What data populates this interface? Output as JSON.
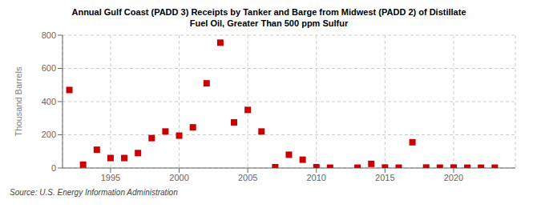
{
  "chart_data": {
    "type": "scatter",
    "title": "Annual Gulf Coast (PADD 3) Receipts by Tanker and Barge from Midwest (PADD 2) of Distillate\nFuel Oil, Greater Than 500 ppm Sulfur",
    "ylabel": "Thousand Barrels",
    "annotation": "Source: U.S. Energy Information Administration",
    "color": "#cc0000",
    "marker": "square",
    "grid": true,
    "xlim": [
      1991.5,
      2024.5
    ],
    "xticks": [
      1995,
      2000,
      2005,
      2010,
      2015,
      2020
    ],
    "ylim": [
      0,
      800
    ],
    "yticks": [
      0,
      200,
      400,
      600,
      800
    ],
    "x": [
      1992,
      1993,
      1994,
      1995,
      1996,
      1997,
      1998,
      1999,
      2000,
      2001,
      2002,
      2003,
      2004,
      2005,
      2006,
      2007,
      2008,
      2009,
      2010,
      2011,
      2013,
      2014,
      2015,
      2016,
      2017,
      2018,
      2019,
      2020,
      2021,
      2022,
      2023
    ],
    "values": [
      470,
      20,
      110,
      60,
      60,
      90,
      180,
      220,
      195,
      245,
      510,
      755,
      275,
      350,
      220,
      5,
      80,
      50,
      5,
      2,
      2,
      25,
      3,
      2,
      155,
      3,
      2,
      3,
      2,
      2,
      2
    ]
  }
}
